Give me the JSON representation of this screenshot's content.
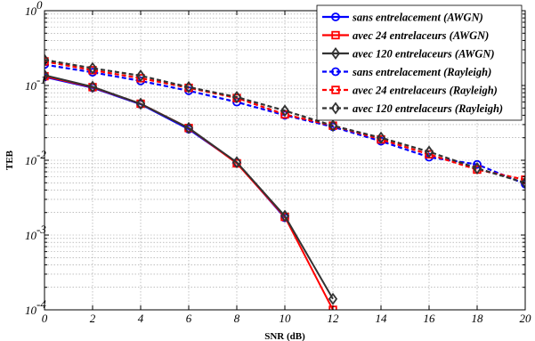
{
  "chart_data": {
    "type": "line",
    "xlabel": "SNR (dB)",
    "ylabel": "TEB",
    "xlim": [
      0,
      20
    ],
    "ylim": [
      0.0001,
      1
    ],
    "yscale": "log",
    "grid": true,
    "legend_position": "top-right",
    "x_ticks": [
      "0",
      "2",
      "4",
      "6",
      "8",
      "10",
      "12",
      "14",
      "16",
      "18",
      "20"
    ],
    "y_ticks": [
      {
        "mant": "10",
        "exp": "-4",
        "value": 0.0001
      },
      {
        "mant": "10",
        "exp": "-3",
        "value": 0.001
      },
      {
        "mant": "10",
        "exp": "-2",
        "value": 0.01
      },
      {
        "mant": "10",
        "exp": "-1",
        "value": 0.1
      },
      {
        "mant": "10",
        "exp": "0",
        "value": 1
      }
    ],
    "series": [
      {
        "name": "sans entrelacement (AWGN)",
        "color": "#0000ff",
        "dash": "solid",
        "marker": "circle",
        "x": [
          0,
          2,
          4,
          6,
          8,
          10
        ],
        "y": [
          0.13,
          0.093,
          0.056,
          0.026,
          0.0093,
          0.0017
        ]
      },
      {
        "name": "avec 24 entrelaceurs (AWGN)",
        "color": "#ff0000",
        "dash": "solid",
        "marker": "square",
        "x": [
          0,
          2,
          4,
          6,
          8,
          10,
          12
        ],
        "y": [
          0.133,
          0.095,
          0.057,
          0.027,
          0.0091,
          0.00175,
          0.0001
        ]
      },
      {
        "name": "avec 120 entrelaceurs (AWGN)",
        "color": "#333333",
        "dash": "solid",
        "marker": "diamond",
        "x": [
          0,
          2,
          4,
          6,
          8,
          10,
          12
        ],
        "y": [
          0.137,
          0.096,
          0.057,
          0.027,
          0.0094,
          0.0018,
          0.00014
        ]
      },
      {
        "name": "sans entrelacement (Rayleigh)",
        "color": "#0000ff",
        "dash": "dash",
        "marker": "circle",
        "x": [
          0,
          2,
          4,
          6,
          8,
          10,
          12,
          14,
          16,
          18,
          20
        ],
        "y": [
          0.19,
          0.15,
          0.115,
          0.085,
          0.06,
          0.04,
          0.028,
          0.018,
          0.011,
          0.0088,
          0.0048
        ]
      },
      {
        "name": "avec 24 entrelaceurs (Rayleigh)",
        "color": "#ff0000",
        "dash": "dash",
        "marker": "square",
        "x": [
          0,
          2,
          4,
          6,
          8,
          10,
          12,
          14,
          16,
          18,
          20
        ],
        "y": [
          0.21,
          0.16,
          0.125,
          0.093,
          0.068,
          0.041,
          0.029,
          0.019,
          0.012,
          0.0075,
          0.0055
        ]
      },
      {
        "name": "avec 120 entrelaceurs (Rayleigh)",
        "color": "#333333",
        "dash": "dash",
        "marker": "diamond",
        "x": [
          0,
          2,
          4,
          6,
          8,
          10,
          12,
          14,
          16,
          18,
          20
        ],
        "y": [
          0.22,
          0.17,
          0.135,
          0.095,
          0.07,
          0.046,
          0.029,
          0.02,
          0.013,
          0.0078,
          0.005
        ]
      }
    ]
  }
}
